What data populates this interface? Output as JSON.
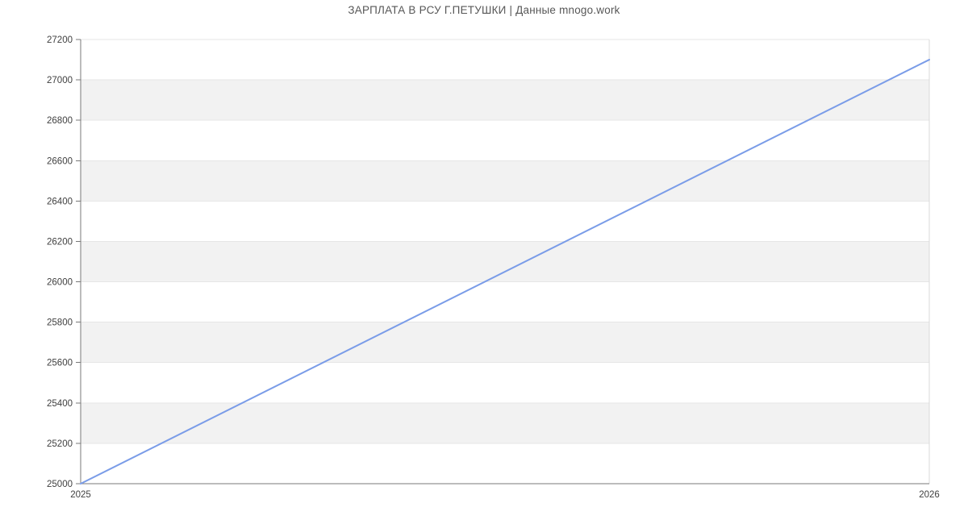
{
  "page": {
    "title": "ЗАРПЛАТА В РСУ Г.ПЕТУШКИ | Данные mnogo.work"
  },
  "chart_data": {
    "type": "line",
    "title": "ЗАРПЛАТА В РСУ Г.ПЕТУШКИ | Данные mnogo.work",
    "x": [
      2025,
      2026
    ],
    "values": [
      25000,
      27100
    ],
    "x_tick_labels": [
      "2025",
      "2026"
    ],
    "y_ticks": [
      25000,
      25200,
      25400,
      25600,
      25800,
      26000,
      26200,
      26400,
      26600,
      26800,
      27000,
      27200
    ],
    "xlim": [
      2025,
      2026
    ],
    "ylim": [
      25000,
      27200
    ],
    "xlabel": "",
    "ylabel": "",
    "grid": true,
    "legend": "none",
    "alternating_bands": true,
    "colors": {
      "line": "#7a9ce8",
      "band_fill": "#f2f2f2",
      "gridline": "#e6e6e6",
      "axis": "#787878",
      "plot_border": "#d9d9d9",
      "tick_label": "#404040",
      "title_text": "#575757",
      "background": "#ffffff"
    }
  }
}
